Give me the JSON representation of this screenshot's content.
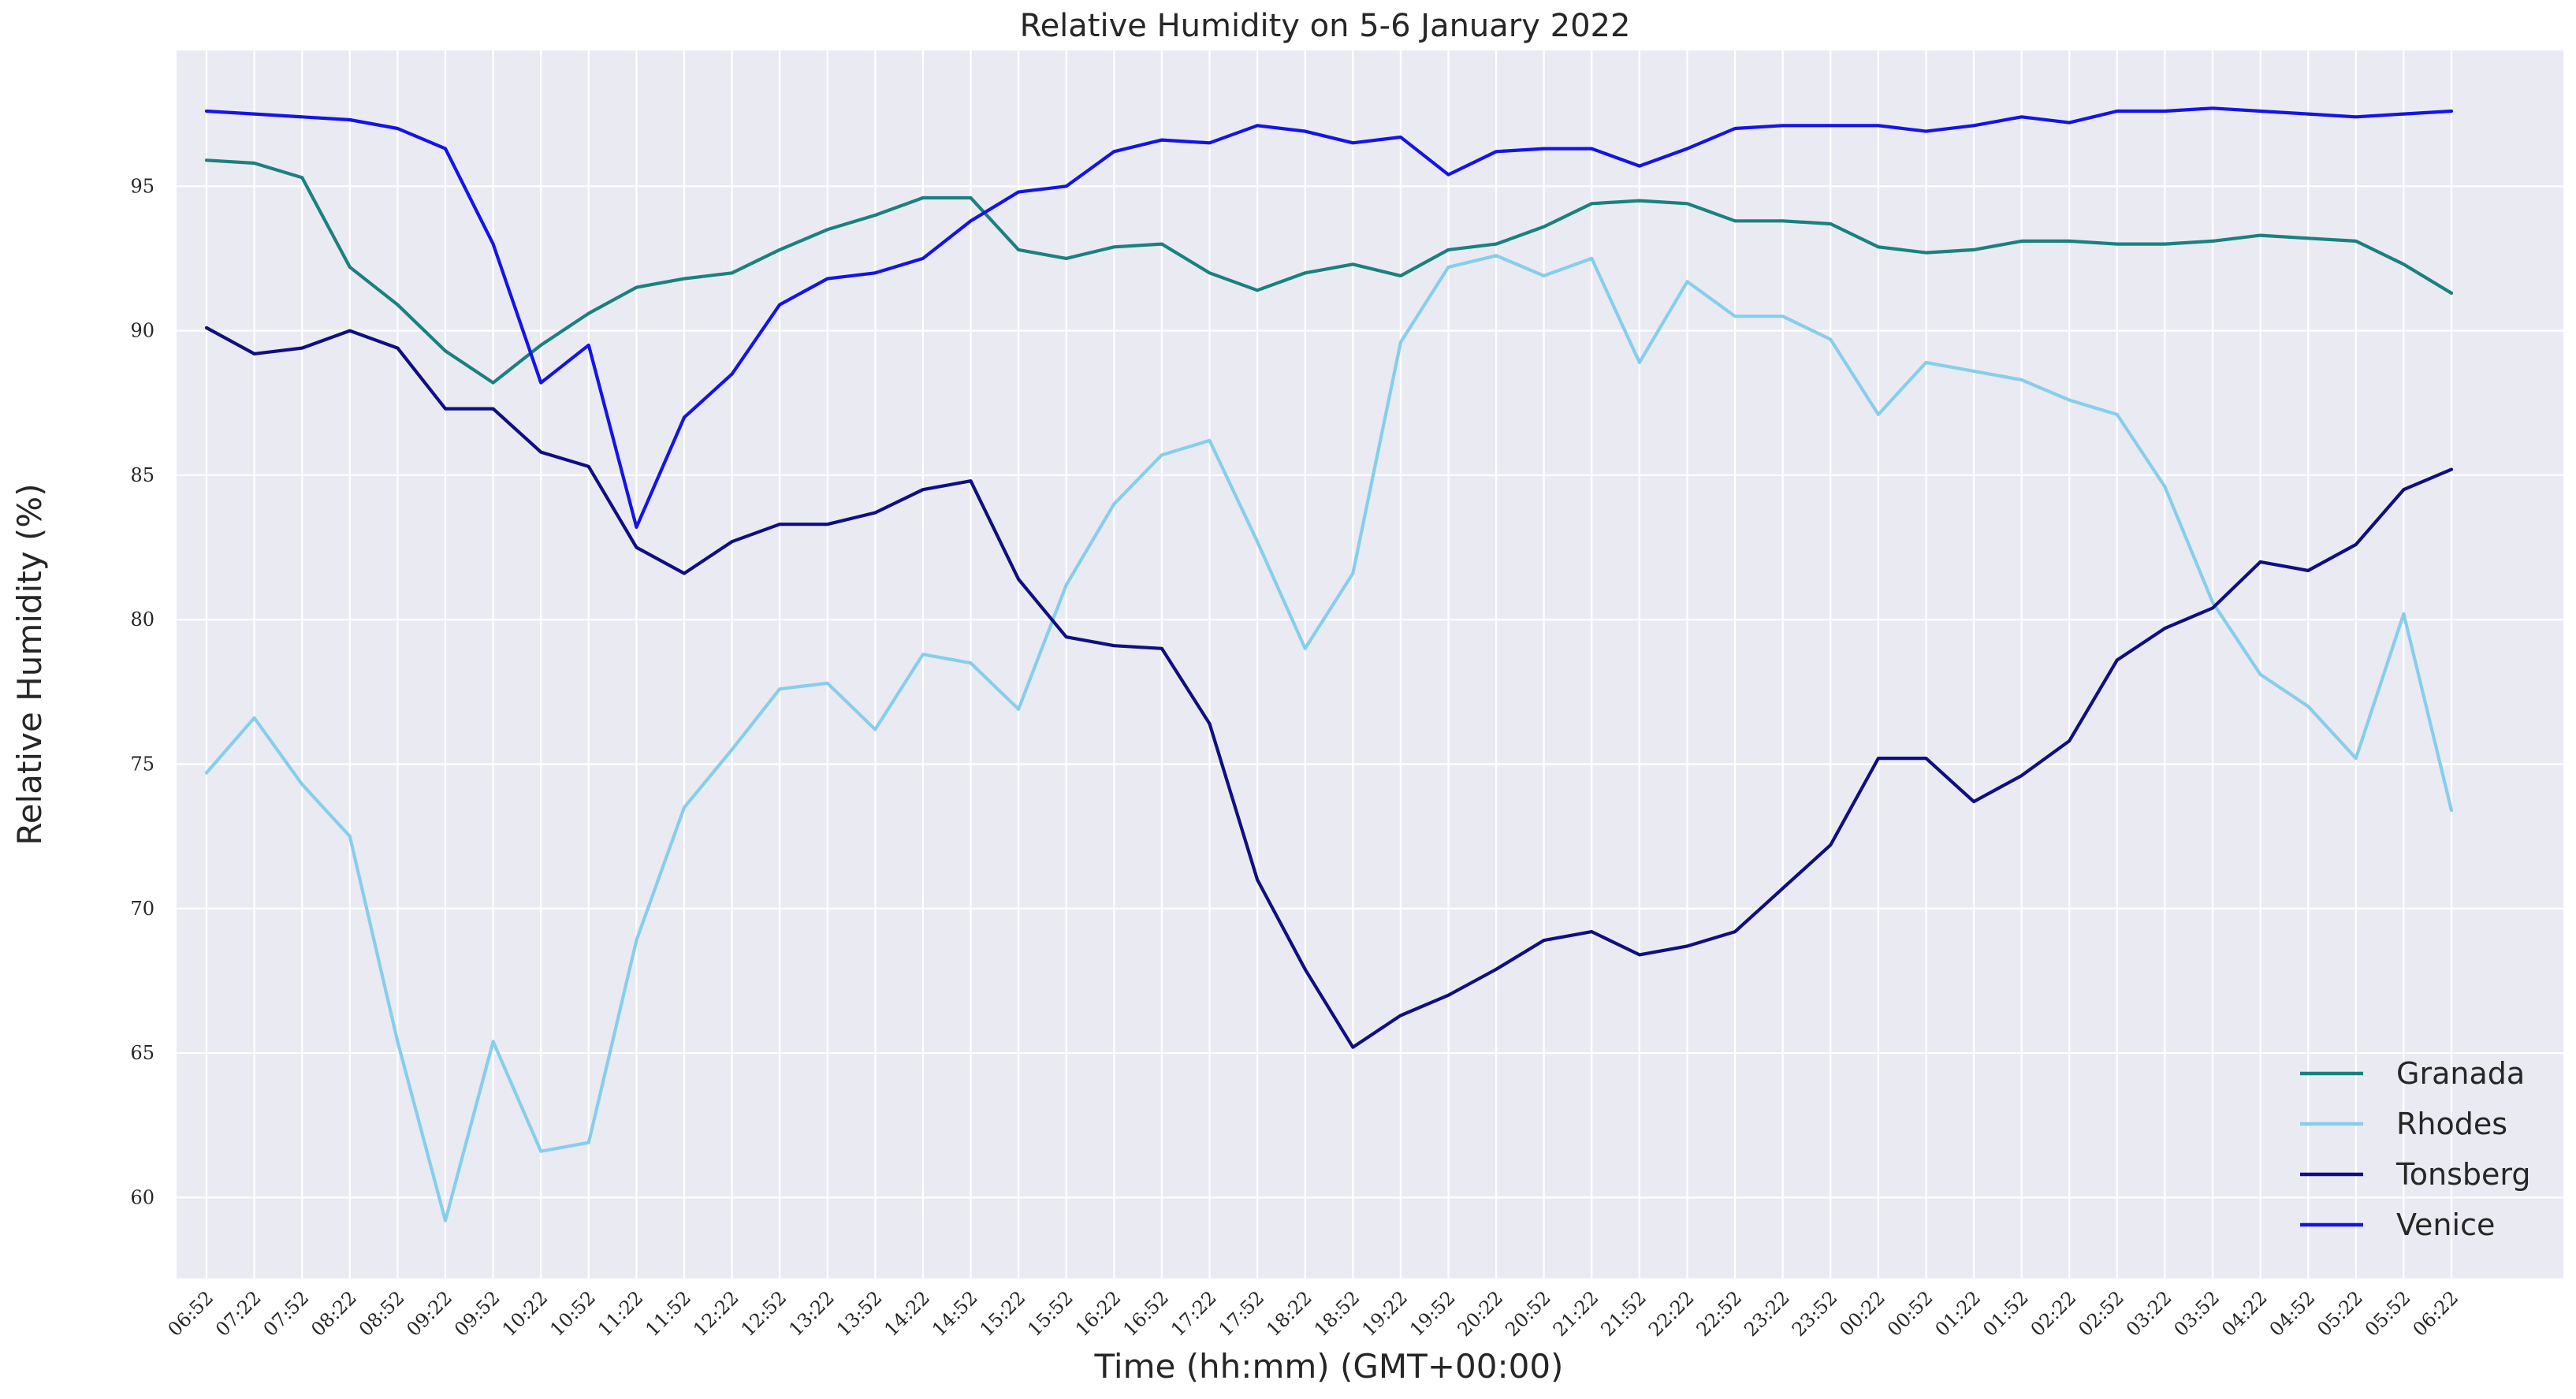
{
  "chart_data": {
    "type": "line",
    "title": "Relative Humidity on 5-6 January 2022",
    "xlabel": "Time (hh:mm) (GMT+00:00)",
    "ylabel": "Relative Humidity (%)",
    "ylim": [
      57.2,
      99.7
    ],
    "yticks": [
      60,
      65,
      70,
      75,
      80,
      85,
      90,
      95
    ],
    "grid": true,
    "legend_position": "bottom-right",
    "categories": [
      "06:52",
      "07:22",
      "07:52",
      "08:22",
      "08:52",
      "09:22",
      "09:52",
      "10:22",
      "10:52",
      "11:22",
      "11:52",
      "12:22",
      "12:52",
      "13:22",
      "13:52",
      "14:22",
      "14:52",
      "15:22",
      "15:52",
      "16:22",
      "16:52",
      "17:22",
      "17:52",
      "18:22",
      "18:52",
      "19:22",
      "19:52",
      "20:22",
      "20:52",
      "21:22",
      "21:52",
      "22:22",
      "22:52",
      "23:22",
      "23:52",
      "00:22",
      "00:52",
      "01:22",
      "01:52",
      "02:22",
      "02:52",
      "03:22",
      "03:52",
      "04:22",
      "04:52",
      "05:22",
      "05:52",
      "06:22"
    ],
    "series": [
      {
        "name": "Granada",
        "color": "#1b8080",
        "values": [
          95.9,
          95.8,
          95.3,
          92.2,
          90.9,
          89.3,
          88.2,
          89.5,
          90.6,
          91.5,
          91.8,
          92.0,
          92.8,
          93.5,
          94.0,
          94.6,
          94.6,
          92.8,
          92.5,
          92.9,
          93.0,
          92.0,
          91.4,
          92.0,
          92.3,
          91.9,
          92.8,
          93.0,
          93.6,
          94.4,
          94.5,
          94.4,
          93.8,
          93.8,
          93.7,
          92.9,
          92.7,
          92.8,
          93.1,
          93.1,
          93.0,
          93.0,
          93.1,
          93.3,
          93.2,
          93.1,
          92.3,
          91.3
        ]
      },
      {
        "name": "Rhodes",
        "color": "#87ceeb",
        "values": [
          74.7,
          76.6,
          74.3,
          72.5,
          65.4,
          59.2,
          65.4,
          61.6,
          61.9,
          68.9,
          73.5,
          75.5,
          77.6,
          77.8,
          76.2,
          78.8,
          78.5,
          76.9,
          81.2,
          84.0,
          85.7,
          86.2,
          82.7,
          79.0,
          81.6,
          89.6,
          92.2,
          92.6,
          91.9,
          92.5,
          88.9,
          91.7,
          90.5,
          90.5,
          89.7,
          87.1,
          88.9,
          88.6,
          88.3,
          87.6,
          87.1,
          84.6,
          80.6,
          78.1,
          77.0,
          75.2,
          80.2,
          73.4
        ]
      },
      {
        "name": "Tonsberg",
        "color": "#0f0f82",
        "values": [
          90.1,
          89.2,
          89.4,
          90.0,
          89.4,
          87.3,
          87.3,
          85.8,
          85.3,
          82.5,
          81.6,
          82.7,
          83.3,
          83.3,
          83.7,
          84.5,
          84.8,
          81.4,
          79.4,
          79.1,
          79.0,
          76.4,
          71.0,
          67.9,
          65.2,
          66.3,
          67.0,
          67.9,
          68.9,
          69.2,
          68.4,
          68.7,
          69.2,
          70.7,
          72.2,
          75.2,
          75.2,
          73.7,
          74.6,
          75.8,
          78.6,
          79.7,
          80.4,
          82.0,
          81.7,
          82.6,
          84.5,
          85.2
        ]
      },
      {
        "name": "Venice",
        "color": "#1414e6",
        "values": [
          97.6,
          97.5,
          97.4,
          97.3,
          97.0,
          96.3,
          93.0,
          88.2,
          89.5,
          83.2,
          87.0,
          88.5,
          90.9,
          91.8,
          92.0,
          92.5,
          93.8,
          94.8,
          95.0,
          96.2,
          96.6,
          96.5,
          97.1,
          96.9,
          96.5,
          96.7,
          95.4,
          96.2,
          96.3,
          96.3,
          95.7,
          96.3,
          97.0,
          97.1,
          97.1,
          97.1,
          96.9,
          97.1,
          97.4,
          97.2,
          97.6,
          97.6,
          97.7,
          97.6,
          97.5,
          97.4,
          97.5,
          97.6
        ]
      }
    ]
  }
}
